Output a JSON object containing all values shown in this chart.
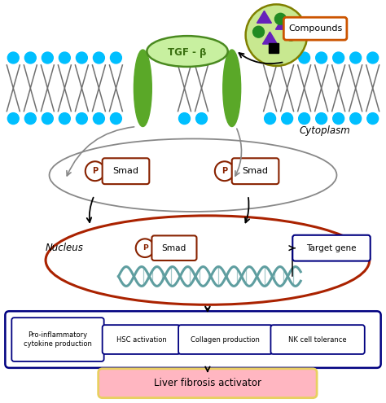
{
  "tgf_label": "TGF - β",
  "cytoplasm_label": "Cytoplasm",
  "nucleus_label": "Nucleus",
  "smad_label": "Smad",
  "p_label": "P",
  "target_gene_label": "Target gene",
  "compounds_label": "Compounds",
  "outputs": [
    "Pro-inflammatory\ncytokine production",
    "HSC activation",
    "Collagen production",
    "NK cell tolerance"
  ],
  "liver_label": "Liver fibrosis activator",
  "bg_color": "#ffffff",
  "membrane_dot_color": "#00BFFF",
  "membrane_line_color": "#707070",
  "green_receptor_color": "#5aA828",
  "tgf_fill_color": "#c8f0a0",
  "tgf_edge_color": "#4a8a20",
  "tgf_text_color": "#3a7010",
  "compound_fill_color": "#c8e890",
  "compound_edge_color": "#808000",
  "dna_color": "#5F9EA0",
  "nucleus_ellipse_color": "#AA2200",
  "smad_edge_color": "#882200",
  "cytoplasm_ellipse_color": "#888888",
  "output_box_color": "#000080",
  "liver_box_color": "#E8D060",
  "liver_fill_color": "#FFB6C1",
  "arrow_color": "#000000"
}
